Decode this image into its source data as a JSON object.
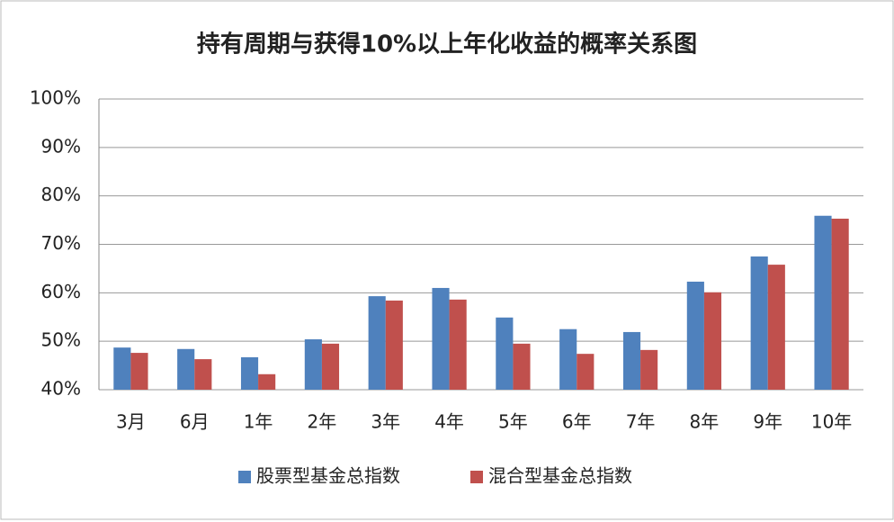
{
  "chart_data": {
    "type": "bar",
    "title": "持有周期与获得10%以上年化收益的概率关系图",
    "categories": [
      "3月",
      "6月",
      "1年",
      "2年",
      "3年",
      "4年",
      "5年",
      "6年",
      "7年",
      "8年",
      "9年",
      "10年"
    ],
    "series": [
      {
        "name": "股票型基金总指数",
        "color": "#4f81bd",
        "values": [
          48.7,
          48.4,
          46.7,
          50.4,
          59.3,
          61.0,
          54.9,
          52.5,
          51.9,
          62.3,
          67.5,
          75.9
        ]
      },
      {
        "name": "混合型基金总指数",
        "color": "#c0504d",
        "values": [
          47.6,
          46.3,
          43.2,
          49.5,
          58.4,
          58.6,
          49.5,
          47.4,
          48.2,
          60.1,
          65.8,
          75.3
        ]
      }
    ],
    "ylim": [
      40,
      100
    ],
    "yticks": [
      {
        "value": 40,
        "label": "40%"
      },
      {
        "value": 50,
        "label": "50%"
      },
      {
        "value": 60,
        "label": "60%"
      },
      {
        "value": 70,
        "label": "70%"
      },
      {
        "value": 80,
        "label": "80%"
      },
      {
        "value": 90,
        "label": "90%"
      },
      {
        "value": 100,
        "label": "100%"
      }
    ],
    "grid": true,
    "legend": "bottom"
  }
}
